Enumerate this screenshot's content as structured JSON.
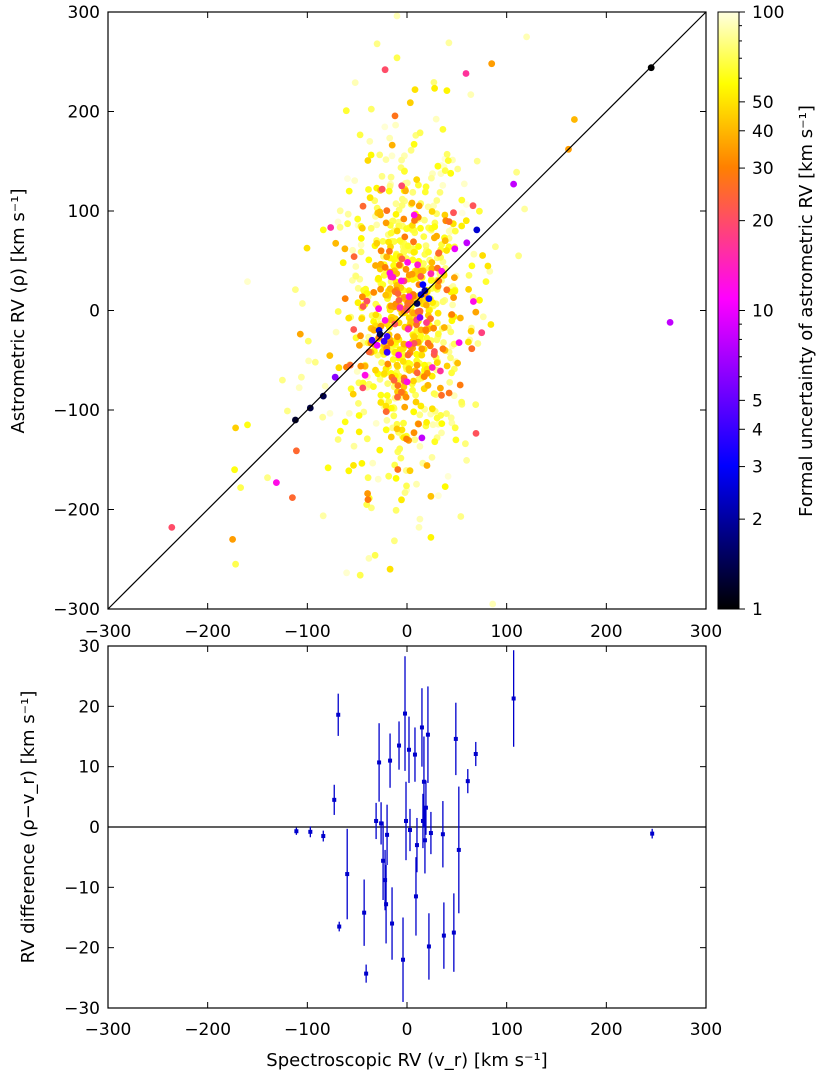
{
  "chart_data": [
    {
      "id": "top",
      "type": "scatter",
      "xlabel": "",
      "ylabel": "Astrometric RV (ρ) [km s⁻¹]",
      "xlim": [
        -300,
        300
      ],
      "ylim": [
        -300,
        300
      ],
      "xticks": [
        "−300",
        "−200",
        "−100",
        "0",
        "100",
        "200",
        "300"
      ],
      "yticks": [
        "−300",
        "−200",
        "−100",
        "0",
        "100",
        "200",
        "300"
      ],
      "grid": false,
      "reference_line": "y = x",
      "colorbar": {
        "label": "Formal uncertainty of astrometric RV [km s⁻¹]",
        "scale": "log",
        "range": [
          1,
          100
        ],
        "ticks": [
          "1",
          "2",
          "3",
          "4",
          "5",
          "10",
          "20",
          "30",
          "40",
          "50",
          "100"
        ],
        "colormap": [
          "#000000",
          "#0000ff",
          "#ff00ff",
          "#ff8000",
          "#ffff00",
          "#ffffe0"
        ]
      },
      "points": [
        [
          245,
          244,
          1
        ],
        [
          -112,
          -110,
          1.2
        ],
        [
          -97,
          -98,
          1.3
        ],
        [
          -84,
          -86,
          1.4
        ],
        [
          -27,
          -24,
          1.5
        ],
        [
          10,
          7,
          1.5
        ],
        [
          -28,
          -20,
          2.5
        ],
        [
          18,
          20,
          2
        ],
        [
          14,
          16,
          2.5
        ],
        [
          22,
          12,
          3
        ],
        [
          16,
          26,
          3
        ],
        [
          70,
          81,
          2.5
        ],
        [
          -23,
          -31,
          4
        ],
        [
          -20,
          -26,
          4
        ],
        [
          -35,
          -30,
          4
        ],
        [
          -20,
          -42,
          4
        ],
        [
          13,
          -7,
          6
        ],
        [
          -72,
          -67,
          6
        ],
        [
          60,
          68,
          8
        ],
        [
          107,
          127,
          8
        ],
        [
          264,
          -12,
          8
        ],
        [
          15,
          -128,
          8
        ],
        [
          48,
          62,
          10
        ],
        [
          2,
          14,
          12
        ],
        [
          -42,
          -65,
          12
        ],
        [
          -131,
          -173,
          12
        ],
        [
          -30,
          -35,
          10
        ],
        [
          -7,
          3,
          15
        ],
        [
          24,
          37,
          15
        ],
        [
          -22,
          -10,
          12
        ],
        [
          -236,
          -218,
          20
        ],
        [
          -22,
          242,
          20
        ],
        [
          -44,
          4,
          22
        ],
        [
          -115,
          -188,
          25
        ],
        [
          -111,
          -141,
          25
        ],
        [
          -57,
          -55,
          25
        ],
        [
          32,
          58,
          25
        ],
        [
          12,
          26,
          30
        ],
        [
          -175,
          -230,
          35
        ],
        [
          45,
          -4,
          30
        ],
        [
          168,
          192,
          40
        ],
        [
          162,
          162,
          35
        ],
        [
          85,
          248,
          35
        ],
        [
          -172,
          -118,
          45
        ],
        [
          5,
          108,
          40
        ],
        [
          -42,
          -56,
          40
        ],
        [
          -54,
          -84,
          45
        ],
        [
          -10,
          -55,
          45
        ],
        [
          9,
          -92,
          45
        ],
        [
          3,
          -161,
          45
        ],
        [
          8,
          222,
          50
        ],
        [
          -173,
          -160,
          60
        ],
        [
          -160,
          -115,
          60
        ],
        [
          -84,
          81,
          60
        ],
        [
          -58,
          120,
          60
        ],
        [
          -17,
          -260,
          50
        ],
        [
          24,
          -228,
          55
        ],
        [
          40,
          221,
          55
        ],
        [
          -47,
          -266,
          70
        ],
        [
          -32,
          -246,
          70
        ],
        [
          -172,
          -255,
          70
        ],
        [
          -140,
          -168,
          80
        ],
        [
          -167,
          -178,
          70
        ],
        [
          -62,
          -112,
          60
        ],
        [
          -39,
          -168,
          70
        ],
        [
          -2,
          -183,
          80
        ],
        [
          54,
          -207,
          80
        ],
        [
          -16,
          29,
          75
        ],
        [
          -30,
          268,
          80
        ],
        [
          -10,
          296,
          90
        ],
        [
          120,
          275,
          90
        ],
        [
          -52,
          229,
          90
        ],
        [
          -112,
          21,
          80
        ],
        [
          112,
          55,
          80
        ],
        [
          110,
          139,
          80
        ],
        [
          118,
          102,
          85
        ],
        [
          64,
          217,
          90
        ],
        [
          -14,
          90,
          70
        ],
        [
          55,
          111,
          65
        ],
        [
          -2,
          122,
          55
        ],
        [
          31,
          145,
          60
        ],
        [
          36,
          182,
          65
        ],
        [
          -10,
          254,
          70
        ],
        [
          42,
          269,
          85
        ],
        [
          86,
          -295,
          90
        ],
        [
          -35,
          -5,
          70
        ],
        [
          -69,
          -1,
          70
        ],
        [
          -92,
          -52,
          80
        ],
        [
          -106,
          -67,
          85
        ],
        [
          -120,
          -101,
          80
        ],
        [
          -125,
          -70,
          80
        ],
        [
          -105,
          7,
          85
        ],
        [
          -160,
          29,
          95
        ],
        [
          28,
          88,
          70
        ],
        [
          42,
          64,
          60
        ],
        [
          -5,
          -120,
          50
        ],
        [
          16,
          -66,
          60
        ],
        [
          25,
          42,
          40
        ],
        [
          -26,
          60,
          30
        ],
        [
          -62,
          12,
          30
        ],
        [
          -21,
          88,
          35
        ],
        [
          38,
          96,
          45
        ],
        [
          -64,
          48,
          55
        ],
        [
          -16,
          134,
          80
        ],
        [
          12,
          -218,
          90
        ]
      ],
      "density_region": {
        "x_mean": 0,
        "y_mean": 0,
        "x_sd": 32,
        "y_sd": 85,
        "count": 760
      }
    },
    {
      "id": "bottom",
      "type": "scatter",
      "xlabel": "Spectroscopic RV (v_r) [km s⁻¹]",
      "ylabel": "RV difference (ρ−v_r) [km s⁻¹]",
      "xlim": [
        -300,
        300
      ],
      "ylim": [
        -30,
        30
      ],
      "xticks": [
        "−300",
        "−200",
        "−100",
        "0",
        "100",
        "200",
        "300"
      ],
      "yticks": [
        "−30",
        "−20",
        "−10",
        "0",
        "10",
        "20",
        "30"
      ],
      "grid": false,
      "reference_line": "y = 0",
      "marker_color": "#0000cc",
      "points": [
        [
          -111,
          -0.7,
          0.6
        ],
        [
          -97,
          -0.8,
          0.9
        ],
        [
          -84,
          -1.5,
          0.9
        ],
        [
          -73,
          4.5,
          2.5
        ],
        [
          -69,
          18.6,
          3.5
        ],
        [
          -68,
          -16.5,
          0.8
        ],
        [
          -60,
          -7.8,
          7.5
        ],
        [
          -43,
          -14.2,
          5.5
        ],
        [
          -41,
          -24.3,
          1.5
        ],
        [
          -31,
          1.0,
          3.0
        ],
        [
          -28,
          10.7,
          6.5
        ],
        [
          -26,
          0.6,
          3.5
        ],
        [
          -24,
          -5.6,
          6.5
        ],
        [
          -22,
          -8.8,
          5.0
        ],
        [
          -21,
          -12.8,
          6.5
        ],
        [
          -20,
          -1.3,
          5.0
        ],
        [
          -17,
          11.0,
          4.5
        ],
        [
          -15,
          -16.0,
          6.0
        ],
        [
          -8,
          13.5,
          4.0
        ],
        [
          -4,
          -22.0,
          7.0
        ],
        [
          -2,
          18.8,
          9.5
        ],
        [
          -1,
          1.0,
          6.5
        ],
        [
          2,
          12.8,
          5.5
        ],
        [
          3,
          -0.5,
          3.5
        ],
        [
          8,
          12.0,
          4.5
        ],
        [
          9,
          -11.5,
          6.5
        ],
        [
          10,
          -3.0,
          4.5
        ],
        [
          15,
          16.5,
          6.5
        ],
        [
          16,
          1.0,
          4.5
        ],
        [
          17,
          7.5,
          7.5
        ],
        [
          18,
          -2.2,
          5.5
        ],
        [
          19,
          3.2,
          4.5
        ],
        [
          21,
          15.3,
          8.0
        ],
        [
          22,
          -19.8,
          5.5
        ],
        [
          24,
          -1.0,
          3.5
        ],
        [
          36,
          -1.2,
          5.5
        ],
        [
          37,
          -18.0,
          5.5
        ],
        [
          47,
          -17.5,
          6.5
        ],
        [
          49,
          14.6,
          6.0
        ],
        [
          52,
          -3.8,
          10.5
        ],
        [
          61,
          7.6,
          2.0
        ],
        [
          69,
          12.1,
          2.0
        ],
        [
          107,
          21.3,
          8.0
        ],
        [
          246,
          -1.1,
          0.8
        ]
      ]
    }
  ]
}
